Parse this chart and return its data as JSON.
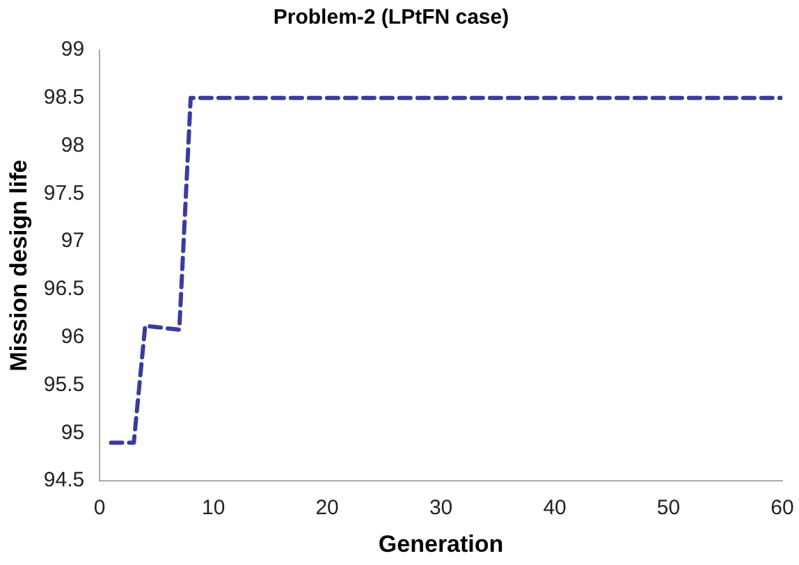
{
  "chart_data": {
    "type": "line",
    "title": "Problem-2 (LPtFN case)",
    "xlabel": "Generation",
    "ylabel": "Mission design life",
    "x": [
      1,
      3,
      4,
      7,
      8,
      60
    ],
    "series": [
      {
        "color": "#3b3b9f",
        "values": [
          94.9,
          94.9,
          96.12,
          96.08,
          98.5,
          98.5
        ]
      }
    ],
    "xlim": [
      0,
      60
    ],
    "xticks": [
      0,
      10,
      20,
      30,
      40,
      50,
      60
    ],
    "ylim": [
      94.5,
      99
    ],
    "yticks": [
      94.5,
      95,
      95.5,
      96,
      96.5,
      97,
      97.5,
      98,
      98.5,
      99
    ],
    "grid": false,
    "legend": false,
    "marker": "none",
    "line_style": "dashed"
  }
}
